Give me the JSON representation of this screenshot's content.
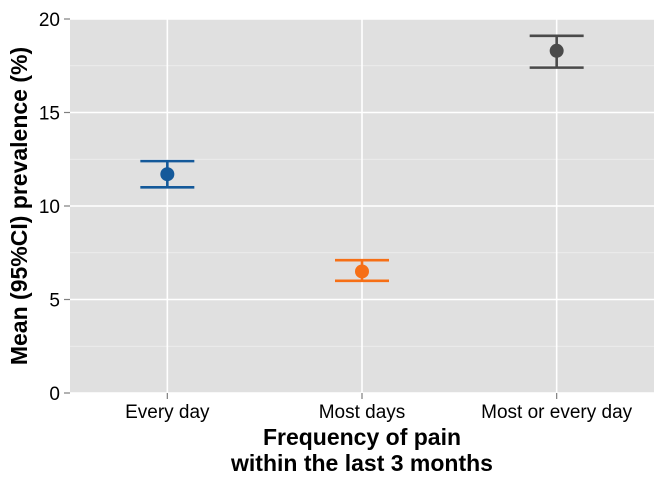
{
  "chart_data": {
    "type": "scatter",
    "subtype": "point-with-error-bars",
    "title": "",
    "xlabel_lines": [
      "Frequency of pain",
      "within the last 3 months"
    ],
    "ylabel": "Mean (95%CI) prevalence (%)",
    "categories": [
      "Every day",
      "Most days",
      "Most or every day"
    ],
    "series": [
      {
        "values": [
          11.7,
          6.5,
          18.3
        ],
        "ci_lower": [
          11.0,
          6.0,
          17.4
        ],
        "ci_upper": [
          12.4,
          7.1,
          19.1
        ],
        "colors": [
          "#14599a",
          "#f66f16",
          "#4a4a4a"
        ]
      }
    ],
    "ylim": [
      0,
      20
    ],
    "yticks": [
      "0",
      "5",
      "10",
      "15",
      "20"
    ],
    "grid": true,
    "legend": "none",
    "panel_color": "#e0e0e0",
    "grid_color": "#ffffff"
  }
}
